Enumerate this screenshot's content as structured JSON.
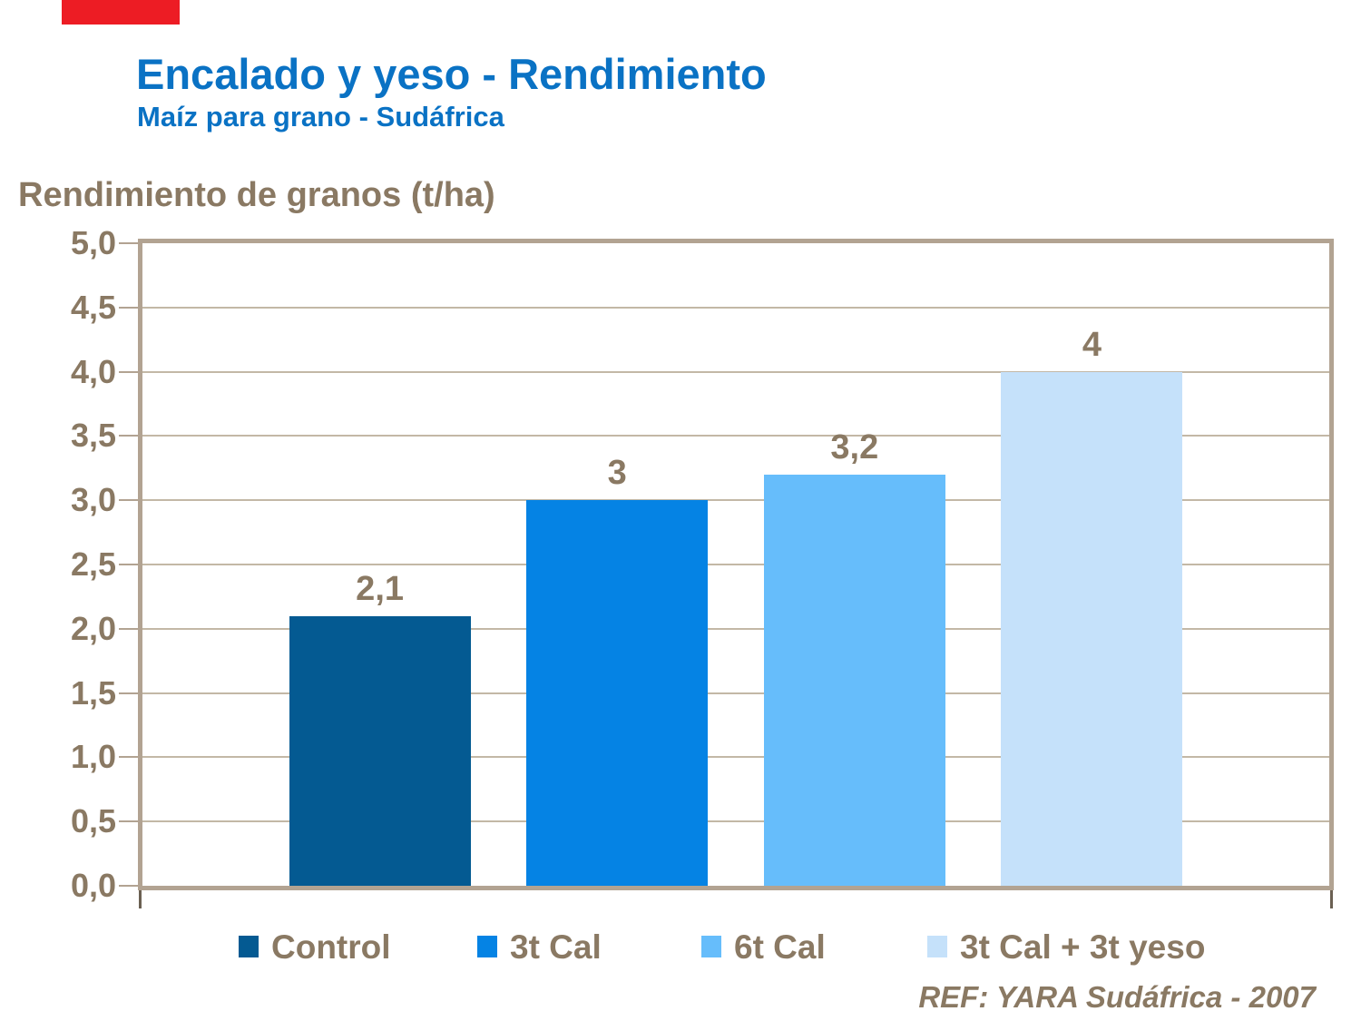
{
  "header": {
    "title": "Encalado y yeso - Rendimiento",
    "subtitle": "Maíz para grano - Sudáfrica"
  },
  "colors": {
    "title_blue": "#0a72c4",
    "text_brown": "#8a7963",
    "frame_tan": "#b2a392",
    "gridline": "#c3b8a6",
    "red_flag": "#ed1c24"
  },
  "chart_data": {
    "type": "bar",
    "title": "Rendimiento de granos (t/ha)",
    "categories": [
      "Control",
      "3t Cal",
      "6t Cal",
      "3t Cal + 3t yeso"
    ],
    "values": [
      2.1,
      3,
      3.2,
      4
    ],
    "value_labels": [
      "2,1",
      "3",
      "3,2",
      "4"
    ],
    "bar_colors": [
      "#045a92",
      "#0583e4",
      "#66bdfb",
      "#c5e1fa"
    ],
    "xlabel": "",
    "ylabel": "Rendimiento de granos (t/ha)",
    "ylim": [
      0,
      5
    ],
    "ytick_step": 0.5,
    "ytick_labels": [
      "0,0",
      "0,5",
      "1,0",
      "1,5",
      "2,0",
      "2,5",
      "3,0",
      "3,5",
      "4,0",
      "4,5",
      "5,0"
    ],
    "grid": true,
    "legend_position": "bottom"
  },
  "footer": {
    "ref": "REF: YARA Sudáfrica - 2007"
  }
}
